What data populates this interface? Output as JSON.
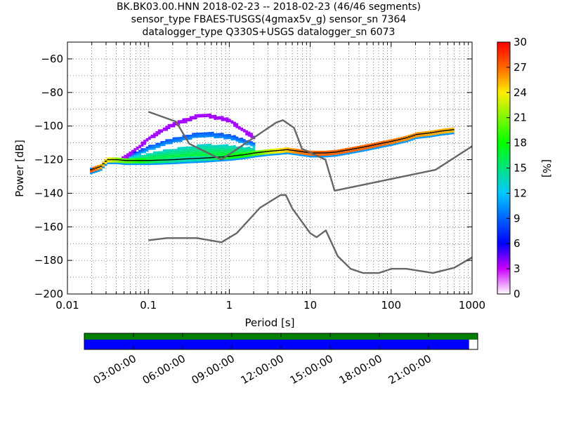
{
  "title": {
    "line1": "BK.BK03.00.HNN   2018-02-23 -- 2018-02-23  (46/46 segments)",
    "line2": "sensor_type FBAES-TUSGS(4gmax5v_g) sensor_sn 7364",
    "line3": "datalogger_type Q330S+USGS datalogger_sn 6073"
  },
  "chart_data": [
    {
      "type": "heatmap",
      "title": "BK.BK03.00.HNN   2018-02-23 -- 2018-02-23  (46/46 segments)",
      "xlabel": "Period [s]",
      "ylabel": "Power [dB]",
      "x_scale": "log",
      "xlim": [
        0.01,
        1000
      ],
      "ylim": [
        -200,
        -50
      ],
      "x_ticks": [
        "0.01",
        "0.1",
        "1",
        "10",
        "100",
        "1000"
      ],
      "y_ticks": [
        "−60",
        "−80",
        "−100",
        "−120",
        "−140",
        "−160",
        "−180",
        "−200"
      ],
      "grid": true,
      "colorbar": {
        "label": "[%]",
        "range": [
          0,
          30
        ],
        "ticks": [
          "30",
          "27",
          "24",
          "21",
          "18",
          "15",
          "12",
          "9",
          "6",
          "3",
          "0"
        ]
      },
      "noise_models": [
        {
          "name": "low",
          "points": [
            [
              0.1,
              -168.0
            ],
            [
              0.17,
              -166.7
            ],
            [
              0.4,
              -166.7
            ],
            [
              0.8,
              -169.2
            ],
            [
              1.24,
              -163.7
            ],
            [
              2.4,
              -148.6
            ],
            [
              4.3,
              -141.1
            ],
            [
              5.0,
              -141.1
            ],
            [
              6.0,
              -149.0
            ],
            [
              10.0,
              -163.8
            ],
            [
              12.0,
              -166.2
            ],
            [
              15.6,
              -162.1
            ],
            [
              21.9,
              -177.5
            ],
            [
              31.6,
              -185.0
            ],
            [
              45.0,
              -187.5
            ],
            [
              70.0,
              -187.5
            ],
            [
              101.0,
              -185.0
            ],
            [
              154.0,
              -185.0
            ],
            [
              328.0,
              -187.5
            ],
            [
              600.0,
              -184.4
            ],
            [
              1000.0,
              -178.2
            ]
          ]
        },
        {
          "name": "high",
          "points": [
            [
              0.1,
              -91.5
            ],
            [
              0.22,
              -97.4
            ],
            [
              0.32,
              -110.5
            ],
            [
              0.8,
              -120.0
            ],
            [
              3.8,
              -97.9
            ],
            [
              4.6,
              -96.5
            ],
            [
              6.3,
              -101.0
            ],
            [
              7.9,
              -113.5
            ],
            [
              15.4,
              -120.0
            ],
            [
              20.0,
              -138.5
            ],
            [
              354.8,
              -126.0
            ],
            [
              1000.0,
              -112.0
            ]
          ]
        }
      ],
      "ppsd_mode": {
        "x": [
          0.019,
          0.025,
          0.03,
          0.04,
          0.05,
          0.07,
          0.1,
          0.2,
          0.3,
          0.5,
          0.7,
          1,
          1.5,
          2,
          3,
          4,
          5,
          7,
          10,
          15,
          20,
          30,
          50,
          70,
          100,
          150,
          200,
          300,
          400,
          600
        ],
        "y": [
          -126,
          -124,
          -120,
          -120,
          -120.5,
          -120.5,
          -120.5,
          -120,
          -119.5,
          -119,
          -118.5,
          -118,
          -117,
          -116,
          -115,
          -114.5,
          -114,
          -115,
          -116,
          -116,
          -115.5,
          -114,
          -112,
          -110.5,
          -109,
          -107,
          -105,
          -104,
          -103,
          -102
        ]
      },
      "ppsd_upper_lobe": {
        "x": [
          0.04,
          0.06,
          0.08,
          0.1,
          0.15,
          0.2,
          0.3,
          0.4,
          0.5,
          0.7,
          1.0,
          1.3,
          1.6,
          2.0
        ],
        "y": [
          -121,
          -116,
          -111,
          -107,
          -102,
          -99,
          -96,
          -94,
          -93.5,
          -95,
          -97,
          -101,
          -104,
          -107
        ]
      },
      "x_spread_dB": [
        2,
        6,
        9,
        14,
        17,
        20,
        24,
        28,
        30,
        28,
        25,
        22,
        20,
        18,
        12,
        9,
        7,
        4,
        3,
        3,
        3,
        3,
        3,
        3,
        4,
        5,
        5,
        6,
        6,
        7
      ]
    },
    {
      "type": "table",
      "name": "data_availability",
      "x_ticks": [
        "03:00:00",
        "06:00:00",
        "09:00:00",
        "12:00:00",
        "15:00:00",
        "18:00:00",
        "21:00:00"
      ],
      "time_range_hours": [
        0,
        24
      ],
      "segment_coverage_fraction": 0.978,
      "colors": {
        "top_bar": "#007f00",
        "bottom_bar": "#0000ff"
      }
    }
  ]
}
